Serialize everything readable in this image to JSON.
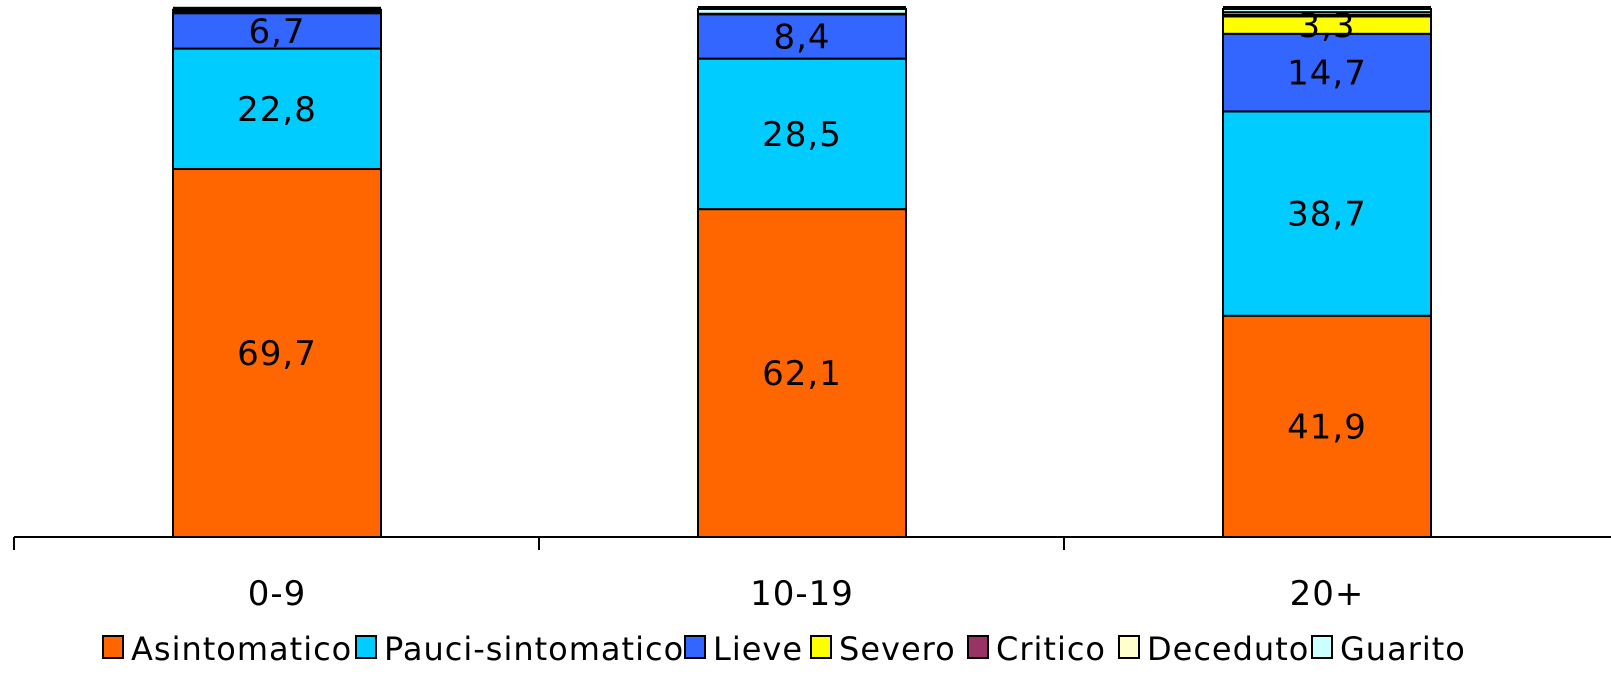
{
  "chart_data": {
    "type": "bar",
    "stacked": true,
    "categories": [
      "0-9",
      "10-19",
      "20+"
    ],
    "series": [
      {
        "name": "Asintomatico",
        "color": "#FF6600",
        "values": [
          69.7,
          62.1,
          41.9
        ],
        "labels": [
          "69,7",
          "62,1",
          "41,9"
        ]
      },
      {
        "name": "Pauci-sintomatico",
        "color": "#00CCFF",
        "values": [
          22.8,
          28.5,
          38.7
        ],
        "labels": [
          "22,8",
          "28,5",
          "38,7"
        ]
      },
      {
        "name": "Lieve",
        "color": "#3366FF",
        "values": [
          6.7,
          8.4,
          14.7
        ],
        "labels": [
          "6,7",
          "8,4",
          "14,7"
        ]
      },
      {
        "name": "Severo",
        "color": "#FFFF00",
        "values": [
          0.3,
          0.1,
          3.3
        ],
        "labels": [
          "",
          "",
          "3,3"
        ]
      },
      {
        "name": "Critico",
        "color": "#993366",
        "values": [
          0.05,
          0.0,
          0.3
        ],
        "labels": [
          "",
          "",
          ""
        ]
      },
      {
        "name": "Deceduto",
        "color": "#FFFFCC",
        "values": [
          0.0,
          0.0,
          0.5
        ],
        "labels": [
          "",
          "",
          ""
        ]
      },
      {
        "name": "Guarito",
        "color": "#CCFFFF",
        "values": [
          0.3,
          0.9,
          0.6
        ],
        "labels": [
          "",
          "",
          ""
        ]
      }
    ],
    "top_cap_color": "#000000",
    "ylim": [
      0,
      100
    ],
    "legend_position": "bottom",
    "grid": false
  }
}
